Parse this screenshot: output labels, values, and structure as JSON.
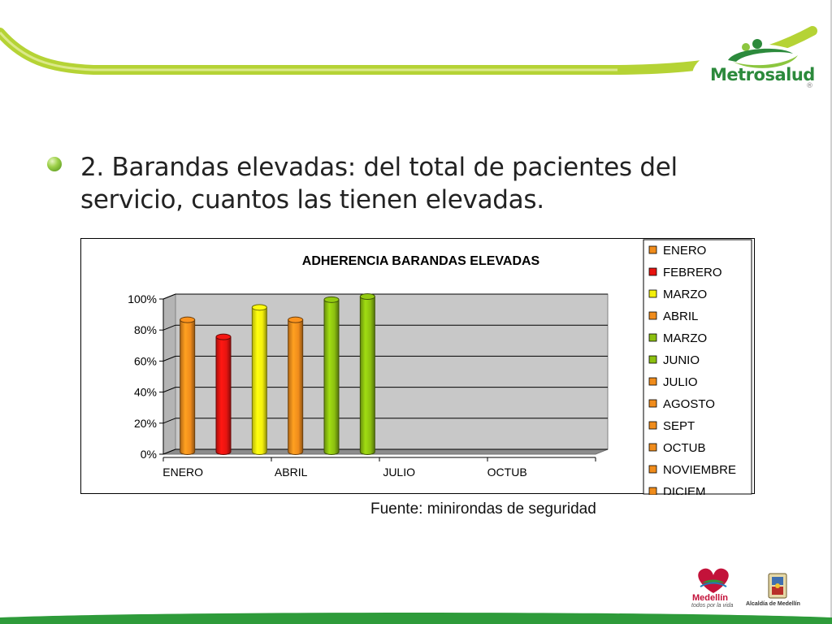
{
  "slide": {
    "heading": "2. Barandas elevadas: del total de pacientes del servicio, cuantos las tienen elevadas.",
    "source": "Fuente: minirondas de seguridad"
  },
  "brand": {
    "name": "Metrosalud",
    "registered": "®",
    "footer_city": "Medellín",
    "footer_city_tagline": "todos por la vida",
    "footer_office": "Alcaldía de Medellín",
    "green": "#7cb82f",
    "red": "#c3123a"
  },
  "chart_data": {
    "type": "bar",
    "title": "ADHERENCIA BARANDAS ELEVADAS",
    "categories": [
      "ENERO",
      "FEBRERO",
      "MARZO",
      "ABRIL",
      "MARZO",
      "JUNIO",
      "JULIO",
      "AGOSTO",
      "SEPT",
      "OCTUB",
      "NOVIEMBRE",
      "DICIEM"
    ],
    "values": [
      85,
      74,
      93,
      85,
      98,
      100,
      null,
      null,
      null,
      null,
      null,
      null
    ],
    "colors": [
      "#f08c1c",
      "#e81410",
      "#f4f00c",
      "#f08c1c",
      "#8cc010",
      "#8cc010",
      "#f08c1c",
      "#f08c1c",
      "#f08c1c",
      "#f08c1c",
      "#f08c1c",
      "#f08c1c"
    ],
    "x_tick_labels": [
      "ENERO",
      "ABRIL",
      "JULIO",
      "OCTUB"
    ],
    "y_ticks": [
      "0%",
      "20%",
      "40%",
      "60%",
      "80%",
      "100%"
    ],
    "ylim": [
      0,
      100
    ],
    "grid": true,
    "legend": "right",
    "style": "3d-cylinder",
    "plot_background": "#c8c8c8"
  }
}
